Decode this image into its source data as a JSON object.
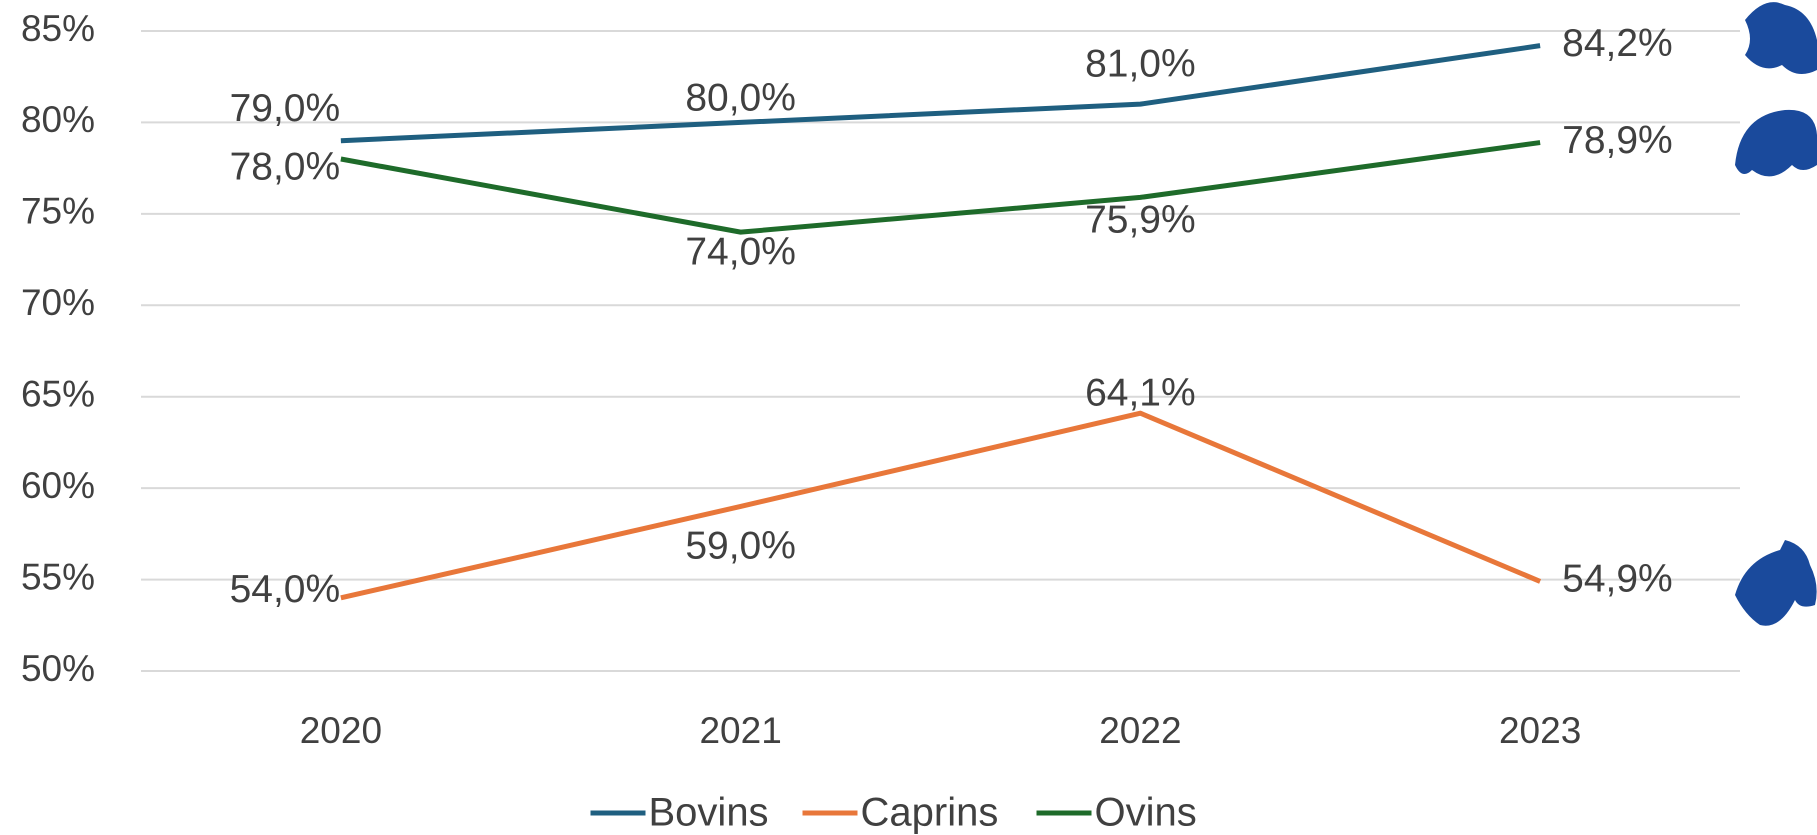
{
  "chart_data": {
    "type": "line",
    "categories": [
      "2020",
      "2021",
      "2022",
      "2023"
    ],
    "series": [
      {
        "name": "Bovins",
        "color": "#1f5f80",
        "values": [
          79,
          80,
          81,
          84.2
        ],
        "value_labels": [
          "79,0%",
          "80,0%",
          "81,0%",
          "84,2%"
        ]
      },
      {
        "name": "Caprins",
        "color": "#e8773a",
        "values": [
          54,
          59,
          64.1,
          54.9
        ],
        "value_labels": [
          "54,0%",
          "59,0%",
          "64,1%",
          "54,9%"
        ]
      },
      {
        "name": "Ovins",
        "color": "#1e6b2a",
        "values": [
          78,
          74,
          75.9,
          78.9
        ],
        "value_labels": [
          "78,0%",
          "74,0%",
          "75,9%",
          "78,9%"
        ]
      }
    ],
    "ylim": [
      50,
      85
    ],
    "yticks": [
      {
        "value": 50,
        "label": "50%"
      },
      {
        "value": 55,
        "label": "55%"
      },
      {
        "value": 60,
        "label": "60%"
      },
      {
        "value": 65,
        "label": "65%"
      },
      {
        "value": 70,
        "label": "70%"
      },
      {
        "value": 75,
        "label": "75%"
      },
      {
        "value": 80,
        "label": "80%"
      },
      {
        "value": 85,
        "label": "85%"
      }
    ],
    "grid": true,
    "legend": "bottom"
  }
}
